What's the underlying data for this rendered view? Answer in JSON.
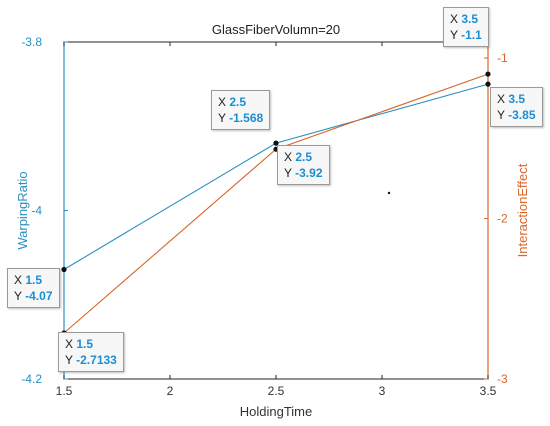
{
  "chart_data": {
    "type": "line",
    "title": "GlassFiberVolumn=20",
    "xlabel": "HoldingTime",
    "ylabel_left": "WarpingRatio",
    "ylabel_right": "InteractionEffect",
    "xlim": [
      1.5,
      3.5
    ],
    "xticks": [
      "1.5",
      "2",
      "2.5",
      "3",
      "3.5"
    ],
    "ylim_left": [
      -4.2,
      -3.8
    ],
    "yticks_left": [
      "-4.2",
      "-4",
      "-3.8"
    ],
    "ylim_right": [
      -3,
      -0.9
    ],
    "yticks_right": [
      "-3",
      "-2",
      "-1"
    ],
    "colors": {
      "left": "#2a8fc0",
      "right": "#d9652a",
      "marker": "#111111"
    },
    "series": [
      {
        "axis": "left",
        "x": [
          1.5,
          2.5,
          3.5
        ],
        "y": [
          -4.07,
          -3.92,
          -3.85
        ]
      },
      {
        "axis": "right",
        "x": [
          1.5,
          2.5,
          3.5
        ],
        "y": [
          -2.7133,
          -1.568,
          -1.1
        ]
      }
    ],
    "datatips": [
      {
        "x_label": "X",
        "x": "1.5",
        "y_label": "Y",
        "y": "-4.07"
      },
      {
        "x_label": "X",
        "x": "2.5",
        "y_label": "Y",
        "y": "-3.92"
      },
      {
        "x_label": "X",
        "x": "3.5",
        "y_label": "Y",
        "y": "-3.85"
      },
      {
        "x_label": "X",
        "x": "1.5",
        "y_label": "Y",
        "y": "-2.7133"
      },
      {
        "x_label": "X",
        "x": "2.5",
        "y_label": "Y",
        "y": "-1.568"
      },
      {
        "x_label": "X",
        "x": "3.5",
        "y_label": "Y",
        "y": "-1.1"
      }
    ]
  }
}
